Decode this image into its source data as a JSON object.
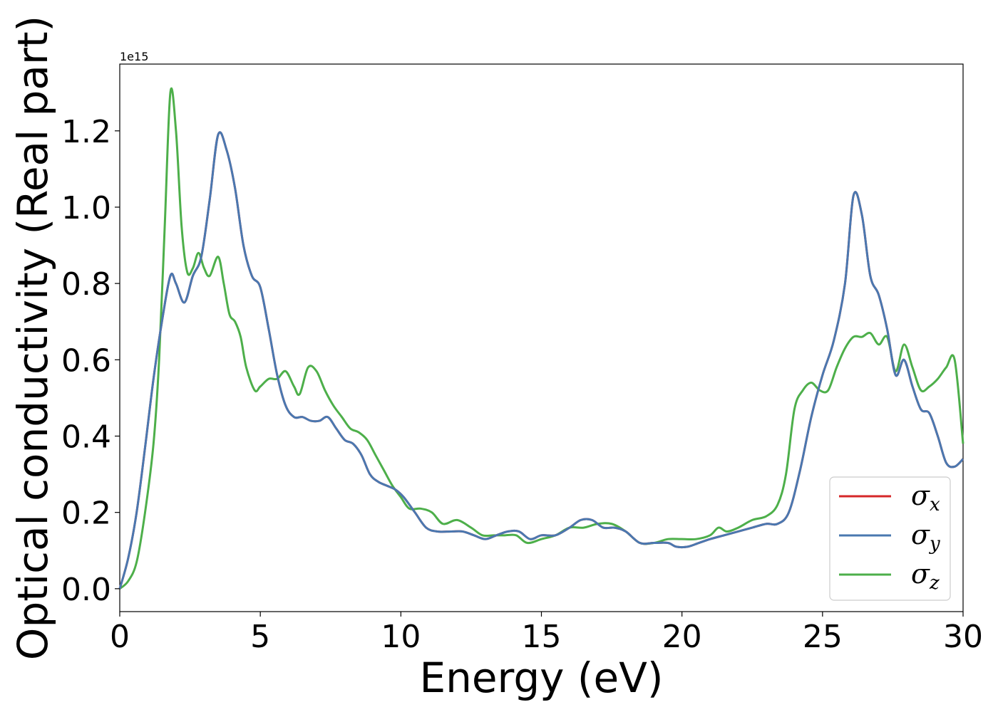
{
  "chart_data": {
    "type": "line",
    "xlabel": "Energy (eV)",
    "ylabel": "Optical conductivity (Real part)",
    "y_offset_label": "1e15",
    "xlim": [
      0,
      30
    ],
    "ylim": [
      -0.06,
      1.375
    ],
    "xticks": [
      0,
      5,
      10,
      15,
      20,
      25,
      30
    ],
    "xtick_labels": [
      "0",
      "5",
      "10",
      "15",
      "20",
      "25",
      "30"
    ],
    "yticks": [
      0.0,
      0.2,
      0.4,
      0.6,
      0.8,
      1.0,
      1.2
    ],
    "ytick_labels": [
      "0.0",
      "0.2",
      "0.4",
      "0.6",
      "0.8",
      "1.0",
      "1.2"
    ],
    "grid": false,
    "legend_position": "bottom-right",
    "series": [
      {
        "name": "σx",
        "legend_base": "σ",
        "legend_sub": "x",
        "color": "#d62728",
        "x": [
          0,
          0.3,
          0.6,
          0.9,
          1.2,
          1.5,
          1.8,
          2.0,
          2.3,
          2.6,
          2.9,
          3.2,
          3.5,
          3.8,
          4.1,
          4.4,
          4.7,
          5.0,
          5.3,
          5.6,
          5.9,
          6.2,
          6.5,
          6.8,
          7.1,
          7.4,
          7.7,
          8.0,
          8.3,
          8.6,
          8.9,
          9.2,
          9.5,
          9.8,
          10.1,
          10.5,
          10.9,
          11.3,
          11.8,
          12.2,
          12.6,
          13.0,
          13.4,
          13.8,
          14.2,
          14.6,
          15.0,
          15.5,
          16.0,
          16.4,
          16.8,
          17.2,
          17.6,
          18.0,
          18.5,
          19.0,
          19.5,
          19.8,
          20.2,
          20.6,
          21.0,
          21.5,
          22.0,
          22.5,
          23.0,
          23.4,
          23.8,
          24.2,
          24.6,
          25.0,
          25.4,
          25.8,
          26.1,
          26.4,
          26.7,
          27.0,
          27.3,
          27.6,
          27.9,
          28.2,
          28.5,
          28.8,
          29.1,
          29.4,
          29.7,
          30.0
        ],
        "values": [
          0.0,
          0.08,
          0.2,
          0.37,
          0.55,
          0.7,
          0.82,
          0.8,
          0.75,
          0.82,
          0.87,
          1.02,
          1.19,
          1.15,
          1.05,
          0.9,
          0.82,
          0.79,
          0.68,
          0.56,
          0.48,
          0.45,
          0.45,
          0.44,
          0.44,
          0.45,
          0.42,
          0.39,
          0.38,
          0.35,
          0.3,
          0.28,
          0.27,
          0.26,
          0.24,
          0.2,
          0.16,
          0.15,
          0.15,
          0.15,
          0.14,
          0.13,
          0.14,
          0.15,
          0.15,
          0.13,
          0.14,
          0.14,
          0.16,
          0.18,
          0.18,
          0.16,
          0.16,
          0.15,
          0.12,
          0.12,
          0.12,
          0.11,
          0.11,
          0.12,
          0.13,
          0.14,
          0.15,
          0.16,
          0.17,
          0.17,
          0.2,
          0.31,
          0.45,
          0.56,
          0.65,
          0.8,
          1.03,
          0.98,
          0.82,
          0.77,
          0.68,
          0.56,
          0.6,
          0.53,
          0.47,
          0.46,
          0.4,
          0.33,
          0.32,
          0.34
        ]
      },
      {
        "name": "σy",
        "legend_base": "σ",
        "legend_sub": "y",
        "color": "#4a78b0",
        "x": [
          0,
          0.3,
          0.6,
          0.9,
          1.2,
          1.5,
          1.8,
          2.0,
          2.3,
          2.6,
          2.9,
          3.2,
          3.5,
          3.8,
          4.1,
          4.4,
          4.7,
          5.0,
          5.3,
          5.6,
          5.9,
          6.2,
          6.5,
          6.8,
          7.1,
          7.4,
          7.7,
          8.0,
          8.3,
          8.6,
          8.9,
          9.2,
          9.5,
          9.8,
          10.1,
          10.5,
          10.9,
          11.3,
          11.8,
          12.2,
          12.6,
          13.0,
          13.4,
          13.8,
          14.2,
          14.6,
          15.0,
          15.5,
          16.0,
          16.4,
          16.8,
          17.2,
          17.6,
          18.0,
          18.5,
          19.0,
          19.5,
          19.8,
          20.2,
          20.6,
          21.0,
          21.5,
          22.0,
          22.5,
          23.0,
          23.4,
          23.8,
          24.2,
          24.6,
          25.0,
          25.4,
          25.8,
          26.1,
          26.4,
          26.7,
          27.0,
          27.3,
          27.6,
          27.9,
          28.2,
          28.5,
          28.8,
          29.1,
          29.4,
          29.7,
          30.0
        ],
        "values": [
          0.0,
          0.08,
          0.2,
          0.37,
          0.55,
          0.7,
          0.82,
          0.8,
          0.75,
          0.82,
          0.87,
          1.02,
          1.19,
          1.15,
          1.05,
          0.9,
          0.82,
          0.79,
          0.68,
          0.56,
          0.48,
          0.45,
          0.45,
          0.44,
          0.44,
          0.45,
          0.42,
          0.39,
          0.38,
          0.35,
          0.3,
          0.28,
          0.27,
          0.26,
          0.24,
          0.2,
          0.16,
          0.15,
          0.15,
          0.15,
          0.14,
          0.13,
          0.14,
          0.15,
          0.15,
          0.13,
          0.14,
          0.14,
          0.16,
          0.18,
          0.18,
          0.16,
          0.16,
          0.15,
          0.12,
          0.12,
          0.12,
          0.11,
          0.11,
          0.12,
          0.13,
          0.14,
          0.15,
          0.16,
          0.17,
          0.17,
          0.2,
          0.31,
          0.45,
          0.56,
          0.65,
          0.8,
          1.03,
          0.98,
          0.82,
          0.77,
          0.68,
          0.56,
          0.6,
          0.53,
          0.47,
          0.46,
          0.4,
          0.33,
          0.32,
          0.34
        ]
      },
      {
        "name": "σz",
        "legend_base": "σ",
        "legend_sub": "z",
        "color": "#4daf4a",
        "x": [
          0,
          0.3,
          0.6,
          0.9,
          1.2,
          1.4,
          1.6,
          1.8,
          2.0,
          2.2,
          2.4,
          2.6,
          2.8,
          3.0,
          3.2,
          3.5,
          3.7,
          3.9,
          4.1,
          4.3,
          4.5,
          4.8,
          5.0,
          5.3,
          5.6,
          5.9,
          6.2,
          6.4,
          6.7,
          7.0,
          7.3,
          7.6,
          7.9,
          8.2,
          8.5,
          8.8,
          9.1,
          9.4,
          9.7,
          10.0,
          10.3,
          10.7,
          11.1,
          11.5,
          12.0,
          12.5,
          12.9,
          13.3,
          13.7,
          14.1,
          14.5,
          15.0,
          15.5,
          16.0,
          16.5,
          17.0,
          17.5,
          18.0,
          18.5,
          19.0,
          19.5,
          20.0,
          20.5,
          21.0,
          21.3,
          21.6,
          22.0,
          22.5,
          23.0,
          23.4,
          23.7,
          24.0,
          24.3,
          24.6,
          24.9,
          25.2,
          25.5,
          25.8,
          26.1,
          26.4,
          26.7,
          27.0,
          27.3,
          27.6,
          27.9,
          28.2,
          28.5,
          28.8,
          29.1,
          29.4,
          29.7,
          30.0
        ],
        "values": [
          0.0,
          0.02,
          0.07,
          0.2,
          0.38,
          0.6,
          0.95,
          1.3,
          1.2,
          0.95,
          0.83,
          0.84,
          0.88,
          0.84,
          0.82,
          0.87,
          0.8,
          0.72,
          0.7,
          0.66,
          0.58,
          0.52,
          0.53,
          0.55,
          0.55,
          0.57,
          0.53,
          0.51,
          0.58,
          0.57,
          0.52,
          0.48,
          0.45,
          0.42,
          0.41,
          0.39,
          0.35,
          0.31,
          0.27,
          0.24,
          0.21,
          0.21,
          0.2,
          0.17,
          0.18,
          0.16,
          0.14,
          0.14,
          0.14,
          0.14,
          0.12,
          0.13,
          0.14,
          0.16,
          0.16,
          0.17,
          0.17,
          0.15,
          0.12,
          0.12,
          0.13,
          0.13,
          0.13,
          0.14,
          0.16,
          0.15,
          0.16,
          0.18,
          0.19,
          0.22,
          0.3,
          0.47,
          0.52,
          0.54,
          0.52,
          0.52,
          0.58,
          0.63,
          0.66,
          0.66,
          0.67,
          0.64,
          0.66,
          0.57,
          0.64,
          0.58,
          0.52,
          0.53,
          0.55,
          0.58,
          0.6,
          0.38
        ]
      }
    ]
  }
}
